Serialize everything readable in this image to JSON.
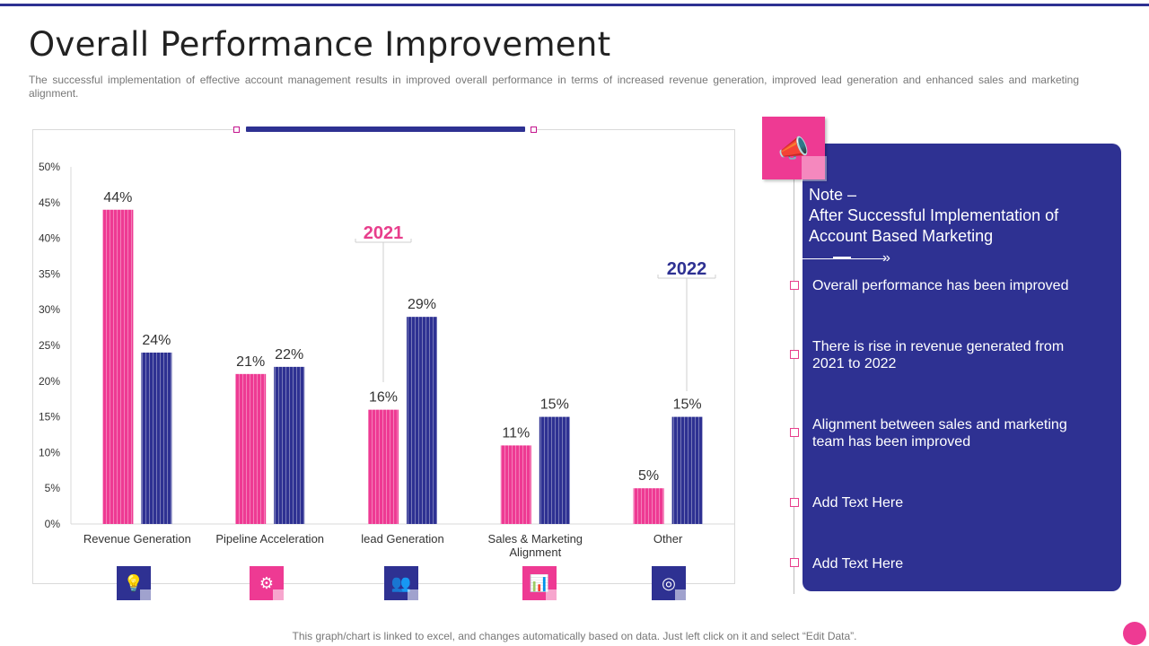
{
  "header": {
    "title": "Overall Performance Improvement",
    "subtitle": "The successful implementation of effective account management results in improved  overall performance  in terms of increased revenue  generation, improved lead generation and enhanced sales and marketing alignment."
  },
  "chart_data": {
    "type": "bar",
    "categories": [
      "Revenue Generation",
      "Pipeline Acceleration",
      "lead Generation",
      "Sales & Marketing Alignment",
      "Other"
    ],
    "category_lines": [
      [
        "Revenue Generation"
      ],
      [
        "Pipeline Acceleration"
      ],
      [
        "lead Generation"
      ],
      [
        "Sales & Marketing",
        "Alignment"
      ],
      [
        "Other"
      ]
    ],
    "series": [
      {
        "name": "2021",
        "values": [
          44,
          21,
          16,
          11,
          5
        ],
        "labels": [
          "44%",
          "21%",
          "16%",
          "11%",
          "5%"
        ],
        "color": "#ee3a93"
      },
      {
        "name": "2022",
        "values": [
          24,
          22,
          29,
          15,
          15
        ],
        "labels": [
          "24%",
          "22%",
          "29%",
          "15%",
          "15%"
        ],
        "color": "#2e3192"
      }
    ],
    "ylim": [
      0,
      50
    ],
    "yticks": [
      "0%",
      "5%",
      "10%",
      "15%",
      "20%",
      "25%",
      "30%",
      "35%",
      "40%",
      "45%",
      "50%"
    ],
    "title": "",
    "xlabel": "",
    "ylabel": "",
    "legend": "annotations above bars"
  },
  "category_icons": [
    "idea-bulb-icon",
    "pipeline-valve-icon",
    "team-icon",
    "presentation-board-icon",
    "hub-network-icon"
  ],
  "icon_glyphs": [
    "💡",
    "⚙",
    "👥",
    "📊",
    "◎"
  ],
  "note": {
    "icon": "megaphone-icon",
    "icon_glyph": "📣",
    "title_lines": [
      "Note –",
      "After Successful Implementation of",
      "Account Based Marketing"
    ],
    "arrow": "»",
    "items": [
      "Overall performance has been improved",
      "There is rise in revenue generated from 2021 to 2022",
      "Alignment between sales and marketing team has been improved",
      "Add Text Here",
      "Add Text Here"
    ]
  },
  "footer": {
    "note": "This graph/chart is linked to excel, and changes automatically based on data. Just left click on it and select “Edit Data”."
  },
  "colors": {
    "navy": "#2e3192",
    "pink": "#ee3a93",
    "pink_text": "#e83e8c"
  }
}
